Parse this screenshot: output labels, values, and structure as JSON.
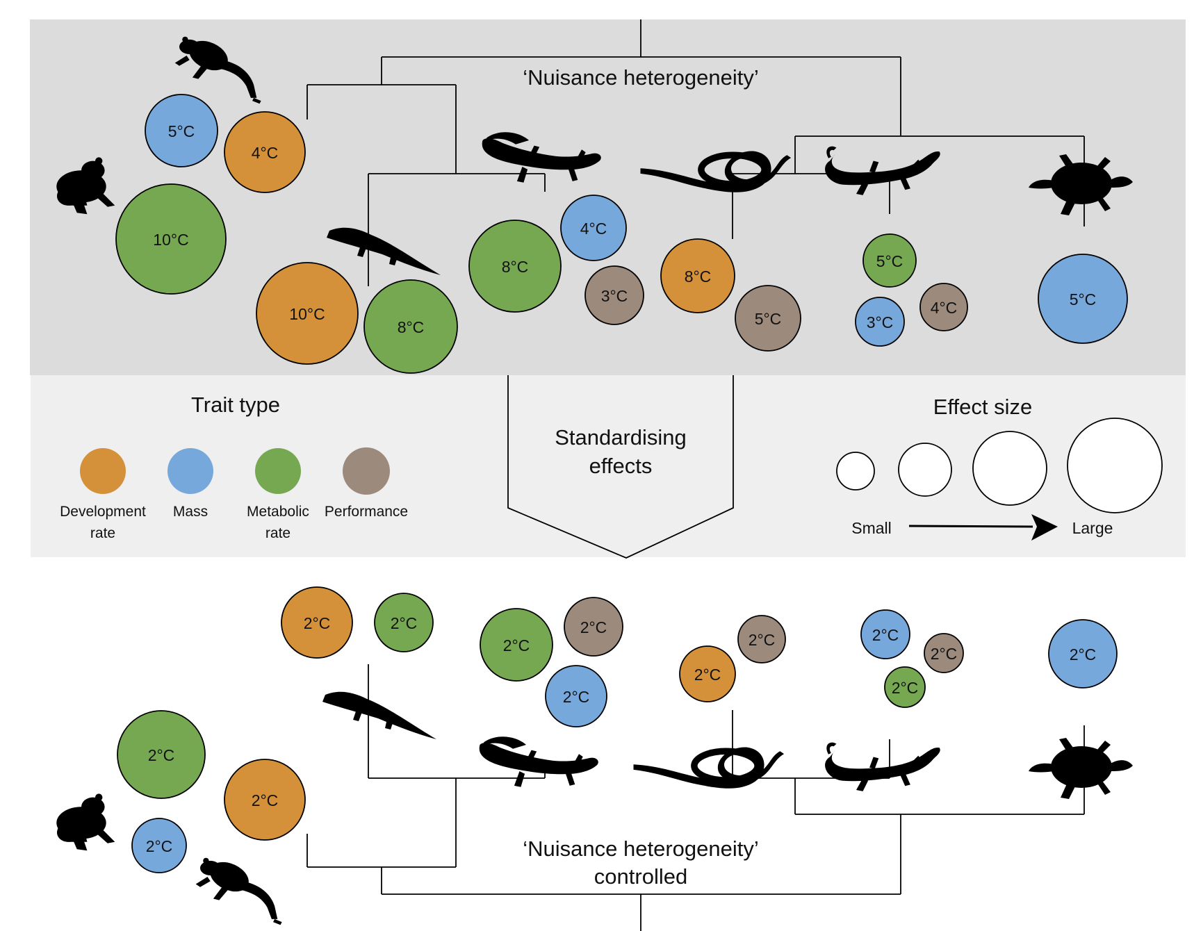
{
  "top_panel": {
    "title": "‘Nuisance heterogeneity’",
    "bubbles": [
      {
        "label": "5°C",
        "trait": "mass"
      },
      {
        "label": "4°C",
        "trait": "development"
      },
      {
        "label": "10°C",
        "trait": "metabolic"
      },
      {
        "label": "10°C",
        "trait": "development"
      },
      {
        "label": "8°C",
        "trait": "metabolic"
      },
      {
        "label": "8°C",
        "trait": "metabolic"
      },
      {
        "label": "4°C",
        "trait": "mass"
      },
      {
        "label": "3°C",
        "trait": "performance"
      },
      {
        "label": "8°C",
        "trait": "development"
      },
      {
        "label": "5°C",
        "trait": "performance"
      },
      {
        "label": "5°C",
        "trait": "metabolic"
      },
      {
        "label": "3°C",
        "trait": "mass"
      },
      {
        "label": "4°C",
        "trait": "performance"
      },
      {
        "label": "5°C",
        "trait": "mass"
      }
    ]
  },
  "legend": {
    "trait_title": "Trait type",
    "traits": [
      {
        "key": "development",
        "label_line1": "Development",
        "label_line2": "rate"
      },
      {
        "key": "mass",
        "label_line1": "Mass",
        "label_line2": ""
      },
      {
        "key": "metabolic",
        "label_line1": "Metabolic",
        "label_line2": "rate"
      },
      {
        "key": "performance",
        "label_line1": "Performance",
        "label_line2": ""
      }
    ],
    "arrow_line1": "Standardising",
    "arrow_line2": "effects",
    "effect_title": "Effect size",
    "small_label": "Small",
    "large_label": "Large"
  },
  "bottom_panel": {
    "title_line1": "‘Nuisance heterogeneity’",
    "title_line2": "controlled",
    "bubbles": [
      {
        "label": "2°C",
        "trait": "development"
      },
      {
        "label": "2°C",
        "trait": "metabolic"
      },
      {
        "label": "2°C",
        "trait": "metabolic"
      },
      {
        "label": "2°C",
        "trait": "performance"
      },
      {
        "label": "2°C",
        "trait": "mass"
      },
      {
        "label": "2°C",
        "trait": "performance"
      },
      {
        "label": "2°C",
        "trait": "development"
      },
      {
        "label": "2°C",
        "trait": "mass"
      },
      {
        "label": "2°C",
        "trait": "performance"
      },
      {
        "label": "2°C",
        "trait": "metabolic"
      },
      {
        "label": "2°C",
        "trait": "mass"
      },
      {
        "label": "2°C",
        "trait": "metabolic"
      },
      {
        "label": "2°C",
        "trait": "development"
      },
      {
        "label": "2°C",
        "trait": "mass"
      }
    ]
  },
  "colors": {
    "development": "#D4913A",
    "mass": "#77A8DC",
    "metabolic": "#76A852",
    "performance": "#9C8A7C",
    "top_bg": "#DCDCDC",
    "legend_bg": "#EFEFEF"
  },
  "icons": [
    "frog-icon",
    "toad-icon",
    "crocodile-icon",
    "salamander-icon",
    "snake-icon",
    "lizard-icon",
    "turtle-icon"
  ]
}
